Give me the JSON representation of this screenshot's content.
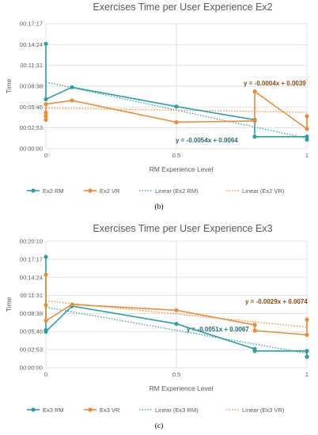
{
  "chart_data": [
    {
      "type": "line",
      "title": "Exercises Time per User Experience Ex2",
      "xlabel": "RM Experience Level",
      "ylabel": "Time",
      "caption": "(b)",
      "xlim": [
        0,
        1
      ],
      "x_ticks": [
        0,
        0.5,
        1
      ],
      "y_ticks": [
        "00:00:00",
        "00:02:53",
        "00:05:46",
        "00:08:38",
        "00:11:31",
        "00:14:24",
        "00:17:17"
      ],
      "ylim_seconds": [
        0,
        1037
      ],
      "grid": true,
      "legend_position": "bottom",
      "series": [
        {
          "name": "Ex2 RM",
          "color": "#2a9fa8",
          "style": "solid",
          "points": [
            {
              "x": 0,
              "y": "00:14:30"
            },
            {
              "x": 0,
              "y": "00:06:50"
            },
            {
              "x": 0.1,
              "y": "00:08:30"
            },
            {
              "x": 0.5,
              "y": "00:05:50"
            },
            {
              "x": 0.8,
              "y": "00:04:00"
            },
            {
              "x": 0.8,
              "y": "00:01:40"
            },
            {
              "x": 1,
              "y": "00:01:40"
            },
            {
              "x": 1,
              "y": "00:01:15"
            }
          ]
        },
        {
          "name": "Ex2 VR",
          "color": "#ed8b34",
          "style": "solid",
          "points": [
            {
              "x": 0,
              "y": "00:04:00"
            },
            {
              "x": 0,
              "y": "00:04:30"
            },
            {
              "x": 0,
              "y": "00:05:00"
            },
            {
              "x": 0,
              "y": "00:06:10"
            },
            {
              "x": 0.1,
              "y": "00:06:40"
            },
            {
              "x": 0.5,
              "y": "00:03:40"
            },
            {
              "x": 0.8,
              "y": "00:03:50"
            },
            {
              "x": 0.8,
              "y": "00:07:55"
            },
            {
              "x": 1,
              "y": "00:02:45"
            },
            {
              "x": 1,
              "y": "00:04:30"
            }
          ]
        },
        {
          "name": "Linear (Ex2 RM)",
          "color": "#2a9fa8",
          "style": "dotted",
          "trend": {
            "slope_days": -0.0054,
            "intercept_days": 0.0064
          },
          "equation": "y = -0.0054x + 0.0064"
        },
        {
          "name": "Linear (Ex2 VR)",
          "color": "#ed8b34",
          "style": "dotted",
          "trend": {
            "slope_days": -0.0004,
            "intercept_days": 0.0039
          },
          "equation": "y = -0.0004x + 0.0039"
        }
      ]
    },
    {
      "type": "line",
      "title": "Exercises Time per User Experience Ex3",
      "xlabel": "RM Experience Level",
      "ylabel": "Time",
      "caption": "(c)",
      "xlim": [
        0,
        1
      ],
      "x_ticks": [
        0,
        0.5,
        1
      ],
      "y_ticks": [
        "00:00:00",
        "00:02:53",
        "00:05:46",
        "00:08:38",
        "00:11:31",
        "00:14:24",
        "00:17:17",
        "00:20:10"
      ],
      "ylim_seconds": [
        0,
        1210
      ],
      "grid": true,
      "legend_position": "bottom",
      "series": [
        {
          "name": "Ex3 RM",
          "color": "#2a9fa8",
          "style": "solid",
          "points": [
            {
              "x": 0,
              "y": "00:17:40"
            },
            {
              "x": 0,
              "y": "00:06:00"
            },
            {
              "x": 0,
              "y": "00:05:45"
            },
            {
              "x": 0.1,
              "y": "00:09:50"
            },
            {
              "x": 0.5,
              "y": "00:07:00"
            },
            {
              "x": 0.8,
              "y": "00:03:00"
            },
            {
              "x": 0.8,
              "y": "00:02:40"
            },
            {
              "x": 1,
              "y": "00:02:40"
            },
            {
              "x": 1,
              "y": "00:01:45"
            }
          ]
        },
        {
          "name": "Ex3 VR",
          "color": "#ed8b34",
          "style": "solid",
          "points": [
            {
              "x": 0,
              "y": "00:14:50"
            },
            {
              "x": 0,
              "y": "00:10:00"
            },
            {
              "x": 0,
              "y": "00:07:30"
            },
            {
              "x": 0.1,
              "y": "00:10:05"
            },
            {
              "x": 0.5,
              "y": "00:09:10"
            },
            {
              "x": 0.8,
              "y": "00:06:50"
            },
            {
              "x": 0.8,
              "y": "00:05:55"
            },
            {
              "x": 1,
              "y": "00:05:15"
            },
            {
              "x": 1,
              "y": "00:07:40"
            }
          ]
        },
        {
          "name": "Linear (Ex3 RM)",
          "color": "#2a9fa8",
          "style": "dotted",
          "trend": {
            "slope_days": -0.0051,
            "intercept_days": 0.0067
          },
          "equation": "y = -0.0051x + 0.0067"
        },
        {
          "name": "Linear (Ex3 VR)",
          "color": "#ed8b34",
          "style": "dotted",
          "trend": {
            "slope_days": -0.0029,
            "intercept_days": 0.0074
          },
          "equation": "y = -0.0029x + 0.0074"
        }
      ]
    }
  ]
}
